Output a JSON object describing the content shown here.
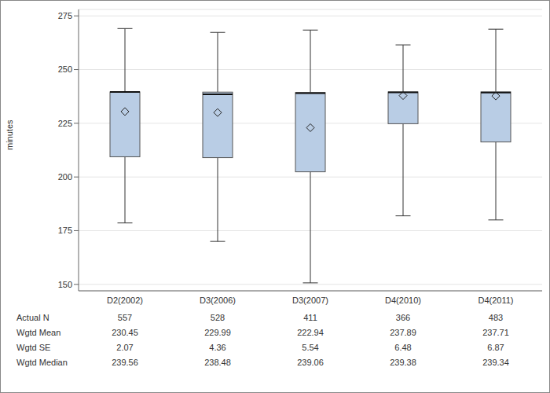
{
  "chart_data": {
    "type": "box",
    "y_label": "minutes",
    "categories": [
      "D2(2002)",
      "D3(2006)",
      "D3(2007)",
      "D4(2010)",
      "D4(2011)"
    ],
    "whisker_low": [
      178.6,
      170.0,
      150.7,
      181.9,
      180.0
    ],
    "q1": [
      209.4,
      209.0,
      202.4,
      224.8,
      216.3
    ],
    "q3": [
      239.6,
      239.5,
      239.3,
      239.6,
      239.6
    ],
    "whisker_high": [
      269.1,
      267.3,
      268.4,
      261.5,
      268.8
    ],
    "color": "#b9cde5",
    "ylim": [
      147,
      278
    ],
    "yticks": [
      150,
      175,
      200,
      225,
      250,
      275
    ],
    "grid": true,
    "table": {
      "rows": [
        {
          "label": "Actual N",
          "values": [
            557,
            528,
            411,
            366,
            483
          ]
        },
        {
          "label": "Wgtd Mean",
          "values": [
            230.45,
            229.99,
            222.94,
            237.89,
            237.71
          ]
        },
        {
          "label": "Wgtd SE",
          "values": [
            2.07,
            4.36,
            5.54,
            6.48,
            6.87
          ]
        },
        {
          "label": "Wgtd Median",
          "values": [
            239.56,
            238.48,
            239.06,
            239.38,
            239.34
          ]
        }
      ]
    }
  }
}
